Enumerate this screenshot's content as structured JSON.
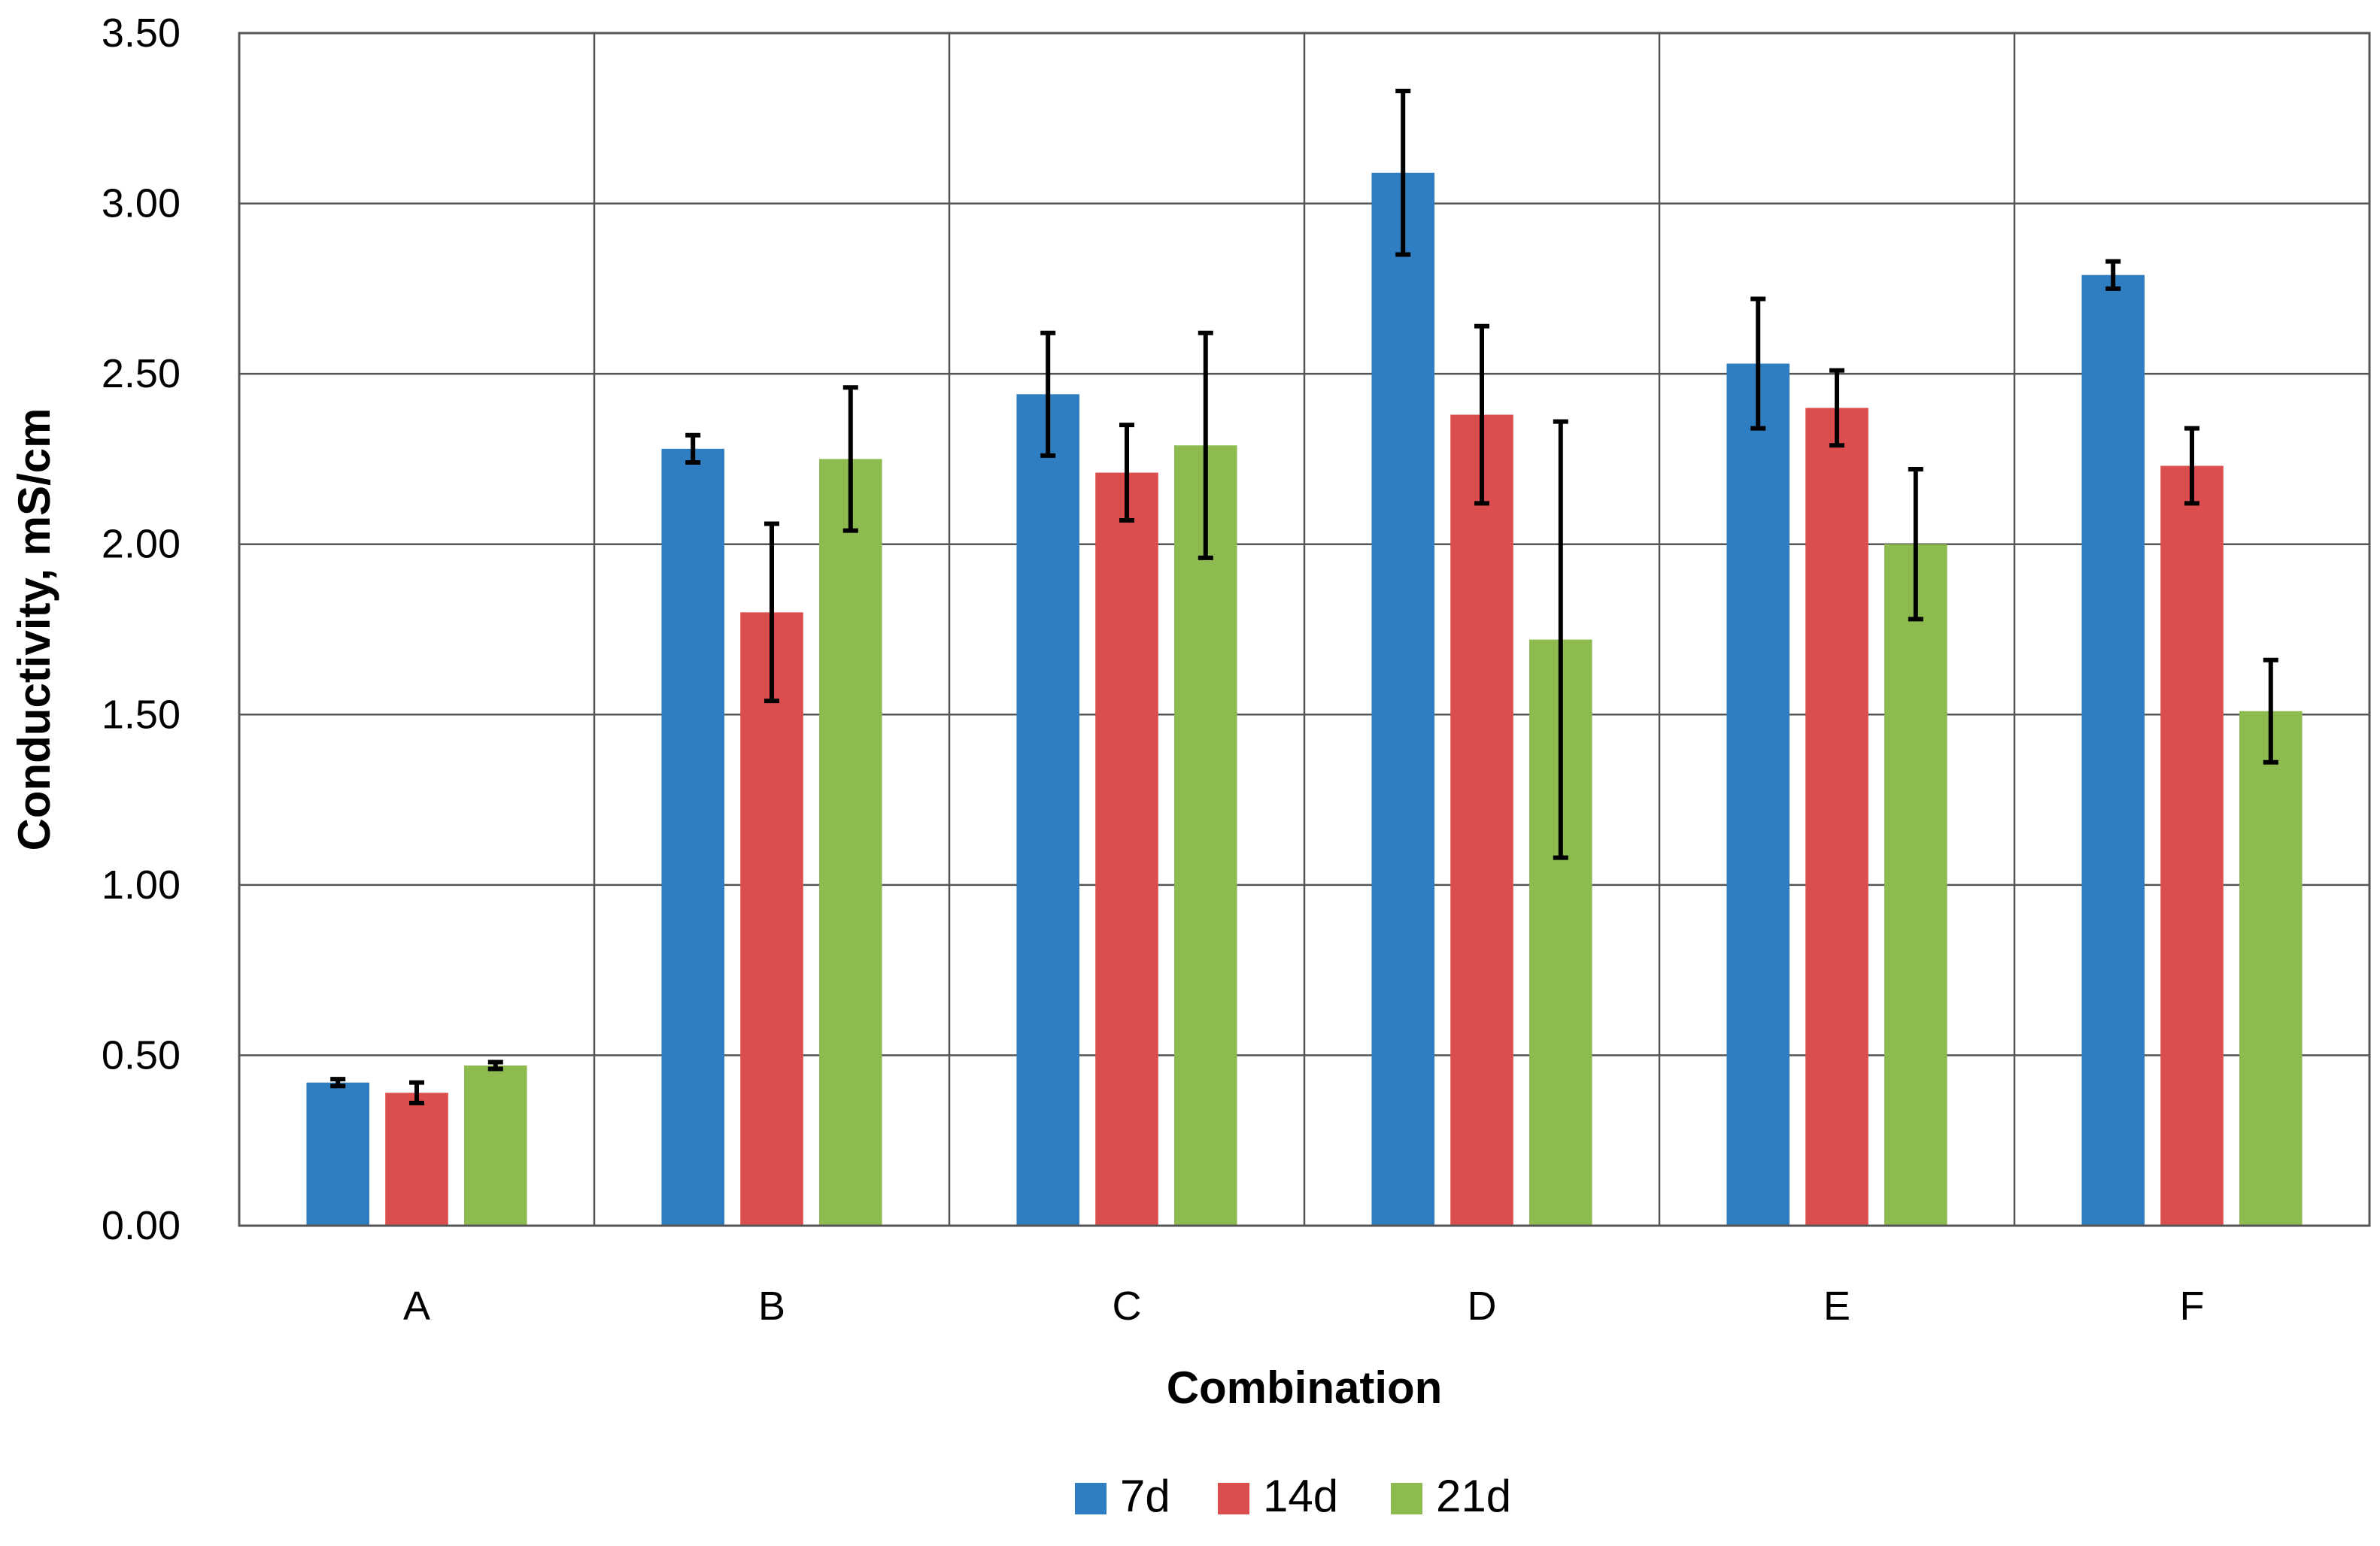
{
  "chart_data": {
    "type": "bar",
    "title": "",
    "xlabel": "Combination",
    "ylabel": "Conductivity, mS/cm",
    "ylim": [
      0,
      3.5
    ],
    "ytick_step": 0.5,
    "ytick_labels": [
      "0.00",
      "0.50",
      "1.00",
      "1.50",
      "2.00",
      "2.50",
      "3.00",
      "3.50"
    ],
    "grid": true,
    "legend_position": "bottom-center",
    "categories": [
      "A",
      "B",
      "C",
      "D",
      "E",
      "F"
    ],
    "series": [
      {
        "name": "7d",
        "color": "#2E7EC1",
        "values": [
          0.42,
          2.28,
          2.44,
          3.09,
          2.53,
          2.79
        ],
        "errors": [
          0.01,
          0.04,
          0.18,
          0.24,
          0.19,
          0.04
        ]
      },
      {
        "name": "14d",
        "color": "#DC4E4E",
        "values": [
          0.39,
          1.8,
          2.21,
          2.38,
          2.4,
          2.23
        ],
        "errors": [
          0.03,
          0.26,
          0.14,
          0.26,
          0.11,
          0.11
        ]
      },
      {
        "name": "21d",
        "color": "#8DBB4F",
        "values": [
          0.47,
          2.25,
          2.29,
          1.72,
          2.0,
          1.51
        ],
        "errors": [
          0.01,
          0.21,
          0.33,
          0.64,
          0.22,
          0.15
        ]
      }
    ]
  }
}
